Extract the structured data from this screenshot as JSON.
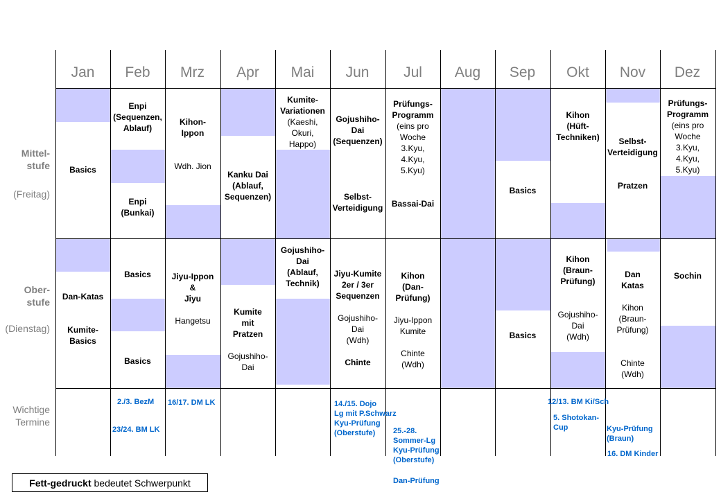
{
  "months": [
    "Jan",
    "Feb",
    "Mrz",
    "Apr",
    "Mai",
    "Jun",
    "Jul",
    "Aug",
    "Sep",
    "Okt",
    "Nov",
    "Dez"
  ],
  "row_labels": {
    "mittel_title": "Mittel-\nstufe",
    "mittel_day": "(Freitag)",
    "ober_title": "Ober-\nstufe",
    "ober_day": "(Dienstag)",
    "termine": "Wichtige\nTermine"
  },
  "mittel": {
    "jan_1": "Basics",
    "feb_1": "Enpi\n(Sequenzen,\nAblauf)",
    "feb_2": "Enpi\n(Bunkai)",
    "mrz_1": "Kihon-\nIppon",
    "mrz_2": "Wdh. Jion",
    "apr_1": "Kanku Dai\n(Ablauf,\nSequenzen)",
    "mai_1": "Kumite-\nVariationen",
    "mai_2": "(Kaeshi,\nOkuri,\nHappo)",
    "jun_1": "Gojushiho-\nDai\n(Sequenzen)",
    "jun_2": "Selbst-\nVerteidigung",
    "jul_1": "Prüfungs-\nProgramm",
    "jul_2": "(eins pro\nWoche\n3.Kyu,\n4.Kyu,\n5.Kyu)",
    "jul_3": "Bassai-Dai",
    "sep_1": "Basics",
    "okt_1": "Kihon\n(Hüft-\nTechniken)",
    "nov_1": "Selbst-\nVerteidigung",
    "nov_2": "Pratzen",
    "dez_1": "Prüfungs-\nProgramm",
    "dez_2": "(eins pro\nWoche\n3.Kyu,\n4.Kyu,\n5.Kyu)"
  },
  "ober": {
    "jan_1": "Dan-Katas",
    "jan_2": "Kumite-\nBasics",
    "feb_1": "Basics",
    "feb_2": "Basics",
    "mrz_1": "Jiyu-Ippon\n&\nJiyu",
    "mrz_2": "Hangetsu",
    "apr_1": "Kumite\nmit\nPratzen",
    "apr_2": "Gojushiho-\nDai",
    "mai_1": "Gojushiho-\nDai\n(Ablauf,\nTechnik)",
    "jun_1": "Jiyu-Kumite\n2er / 3er\nSequenzen",
    "jun_2": "Gojushiho-\nDai\n(Wdh)",
    "jun_3": "Chinte",
    "jul_1": "Kihon\n(Dan-\nPrüfung)",
    "jul_2": "Jiyu-Ippon\nKumite",
    "jul_3": "Chinte\n(Wdh)",
    "sep_1": "Basics",
    "okt_1": "Kihon\n(Braun-\nPrüfung)",
    "okt_2": "Gojushiho-\nDai\n(Wdh)",
    "nov_1": "Dan\nKatas",
    "nov_2": "Kihon\n(Braun-\nPrüfung)",
    "nov_3": "Chinte\n(Wdh)",
    "dez_1": "Sochin"
  },
  "termine": {
    "t1": "2./3. BezM",
    "t2": "23/24. BM LK",
    "t3": "16/17. DM LK",
    "t4": "14./15. Dojo\nLg mit P.Schwarz\nKyu-Prüfung\n(Oberstufe)",
    "t5": "25.-28.\nSommer-Lg\nKyu-Prüfung\n(Oberstufe)",
    "t6": "Dan-Prüfung",
    "t7": "12/13. BM Ki/Sch",
    "t8": "5. Shotokan-\nCup",
    "t9": "Kyu-Prüfung\n(Braun)",
    "t10": "16. DM Kinder"
  },
  "legend": {
    "bold": "Fett-gedruckt",
    "rest": " bedeutet Schwerpunkt"
  },
  "colors": {
    "fill": "#ccccff",
    "events": "#0066cc",
    "labels": "#7f7f7f"
  }
}
